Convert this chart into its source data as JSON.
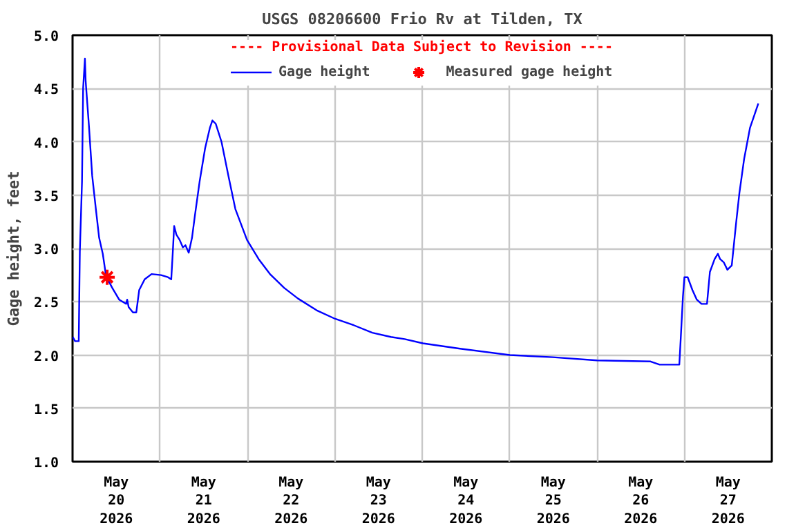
{
  "chart_data": {
    "type": "line",
    "title": "USGS 08206600 Frio Rv at Tilden, TX",
    "ylabel": "Gage height, feet",
    "annotations": [
      "---- Provisional Data Subject to Revision ----"
    ],
    "xlim": [
      "2026-05-20T00:00",
      "2026-05-28T00:00"
    ],
    "xticks": [
      {
        "value": "2026-05-20T00:00",
        "label": null
      },
      {
        "value": "2026-05-20T12:00",
        "label": "May\n20\n2026"
      },
      {
        "value": "2026-05-21T00:00",
        "label": null
      },
      {
        "value": "2026-05-21T12:00",
        "label": "May\n21\n2026"
      },
      {
        "value": "2026-05-22T00:00",
        "label": null
      },
      {
        "value": "2026-05-22T12:00",
        "label": "May\n22\n2026"
      },
      {
        "value": "2026-05-23T00:00",
        "label": null
      },
      {
        "value": "2026-05-23T12:00",
        "label": "May\n23\n2026"
      },
      {
        "value": "2026-05-24T00:00",
        "label": null
      },
      {
        "value": "2026-05-24T12:00",
        "label": "May\n24\n2026"
      },
      {
        "value": "2026-05-25T00:00",
        "label": null
      },
      {
        "value": "2026-05-25T12:00",
        "label": "May\n25\n2026"
      },
      {
        "value": "2026-05-26T00:00",
        "label": null
      },
      {
        "value": "2026-05-26T12:00",
        "label": "May\n26\n2026"
      },
      {
        "value": "2026-05-27T00:00",
        "label": null
      },
      {
        "value": "2026-05-27T12:00",
        "label": "May\n27\n2026"
      }
    ],
    "ylim": [
      1.0,
      5.0
    ],
    "yticks": [
      {
        "value": 1,
        "label": "1.0"
      },
      {
        "value": 1.5,
        "label": "1.5"
      },
      {
        "value": 2,
        "label": "2.0"
      },
      {
        "value": 2.5,
        "label": "2.5"
      },
      {
        "value": 3,
        "label": "3.0"
      },
      {
        "value": 3.5,
        "label": "3.5"
      },
      {
        "value": 4,
        "label": "4.0"
      },
      {
        "value": 4.5,
        "label": "4.5"
      },
      {
        "value": 5,
        "label": "5.0"
      }
    ],
    "grid": true,
    "legend": "top",
    "series": [
      {
        "name": "Gage height",
        "color": "#0000ff",
        "marker": "none",
        "line_style": "solid",
        "x": [
          "2026-05-20T00:04",
          "2026-05-20T00:42",
          "2026-05-20T01:42",
          "2026-05-20T02:00",
          "2026-05-20T02:36",
          "2026-05-20T02:54",
          "2026-05-20T03:24",
          "2026-05-20T03:36",
          "2026-05-20T04:30",
          "2026-05-20T05:24",
          "2026-05-20T06:24",
          "2026-05-20T07:18",
          "2026-05-20T08:18",
          "2026-05-20T09:12",
          "2026-05-20T10:54",
          "2026-05-20T12:48",
          "2026-05-20T14:42",
          "2026-05-20T15:00",
          "2026-05-20T15:24",
          "2026-05-20T16:36",
          "2026-05-20T17:30",
          "2026-05-20T18:18",
          "2026-05-20T19:48",
          "2026-05-20T21:42",
          "2026-05-21T00:18",
          "2026-05-21T02:12",
          "2026-05-21T03:06",
          "2026-05-21T03:30",
          "2026-05-21T03:54",
          "2026-05-21T04:30",
          "2026-05-21T05:24",
          "2026-05-21T06:18",
          "2026-05-21T07:00",
          "2026-05-21T07:54",
          "2026-05-21T08:48",
          "2026-05-21T09:36",
          "2026-05-21T10:54",
          "2026-05-21T12:24",
          "2026-05-21T13:42",
          "2026-05-21T14:24",
          "2026-05-21T15:18",
          "2026-05-21T16:54",
          "2026-05-21T18:48",
          "2026-05-21T20:42",
          "2026-05-21T23:54",
          "2026-05-22T03:06",
          "2026-05-22T06:12",
          "2026-05-22T10:06",
          "2026-05-22T13:54",
          "2026-05-22T19:00",
          "2026-05-23T00:06",
          "2026-05-23T05:12",
          "2026-05-23T10:18",
          "2026-05-23T15:24",
          "2026-05-23T19:12",
          "2026-05-24T00:12",
          "2026-05-24T10:24",
          "2026-05-25T00:06",
          "2026-05-25T11:54",
          "2026-05-26T00:00",
          "2026-05-26T14:42",
          "2026-05-26T17:12",
          "2026-05-26T22:36",
          "2026-05-26T23:00",
          "2026-05-26T23:36",
          "2026-05-27T00:00",
          "2026-05-27T00:54",
          "2026-05-27T02:12",
          "2026-05-27T03:24",
          "2026-05-27T04:42",
          "2026-05-27T06:12",
          "2026-05-27T07:00",
          "2026-05-27T08:18",
          "2026-05-27T09:12",
          "2026-05-27T09:48",
          "2026-05-27T10:48",
          "2026-05-27T11:48",
          "2026-05-27T13:00",
          "2026-05-27T14:12",
          "2026-05-27T15:06",
          "2026-05-27T16:24",
          "2026-05-27T18:00",
          "2026-05-27T19:18",
          "2026-05-27T20:18"
        ],
        "values": [
          2.17,
          2.13,
          2.13,
          2.97,
          3.63,
          4.5,
          4.78,
          4.57,
          4.15,
          3.68,
          3.37,
          3.1,
          2.95,
          2.74,
          2.63,
          2.52,
          2.48,
          2.52,
          2.45,
          2.4,
          2.4,
          2.61,
          2.71,
          2.76,
          2.75,
          2.73,
          2.71,
          2.95,
          3.21,
          3.13,
          3.08,
          3.01,
          3.03,
          2.96,
          3.1,
          3.31,
          3.63,
          3.94,
          4.13,
          4.2,
          4.17,
          4.0,
          3.68,
          3.37,
          3.08,
          2.9,
          2.76,
          2.63,
          2.53,
          2.42,
          2.34,
          2.28,
          2.21,
          2.17,
          2.15,
          2.11,
          2.06,
          2.0,
          1.98,
          1.95,
          1.94,
          1.91,
          1.91,
          2.16,
          2.55,
          2.73,
          2.73,
          2.61,
          2.52,
          2.48,
          2.48,
          2.78,
          2.9,
          2.95,
          2.9,
          2.87,
          2.8,
          2.84,
          3.24,
          3.52,
          3.84,
          4.13,
          4.26,
          4.36
        ]
      },
      {
        "name": "Measured gage height",
        "type": "scatter",
        "color": "#ff0000",
        "marker": "cross",
        "x": [
          "2026-05-20T09:30"
        ],
        "values": [
          2.73
        ]
      }
    ]
  }
}
